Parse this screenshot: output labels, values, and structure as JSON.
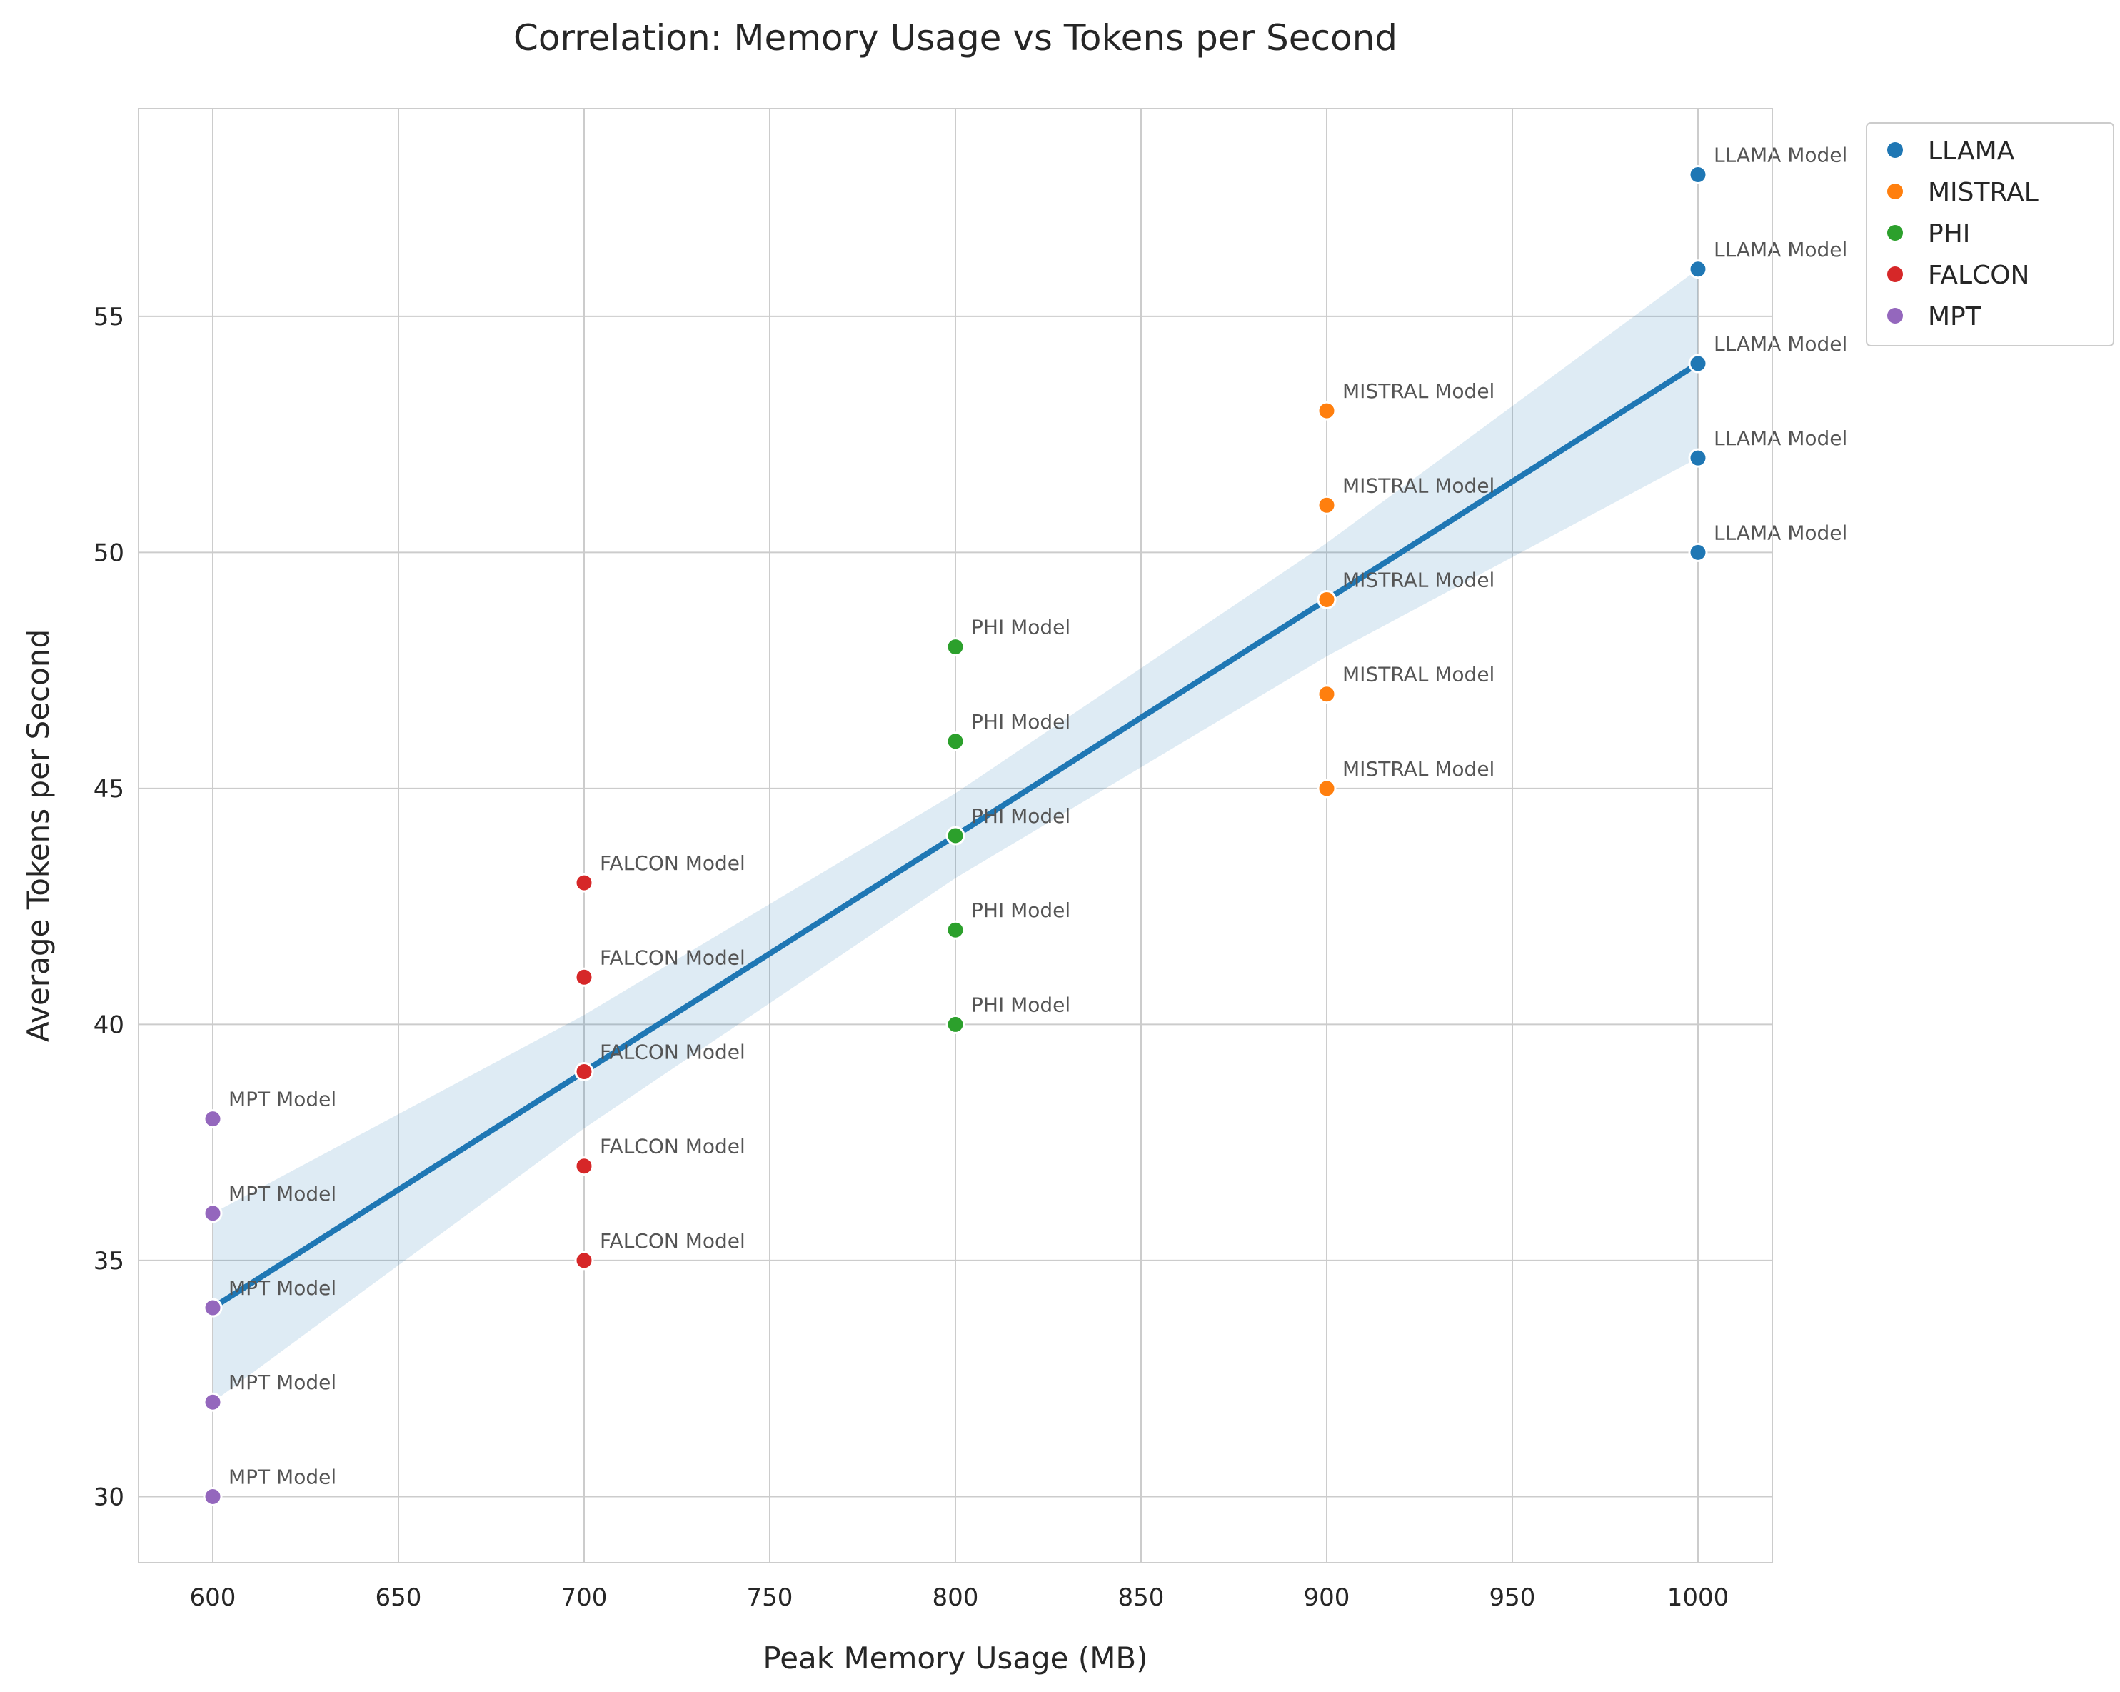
{
  "chart_data": {
    "type": "scatter",
    "title": "Correlation: Memory Usage vs Tokens per Second",
    "xlabel": "Peak Memory Usage (MB)",
    "ylabel": "Average Tokens per Second",
    "xlim": [
      580,
      1020
    ],
    "ylim": [
      28.6,
      59.4
    ],
    "xticks": [
      "600",
      "650",
      "700",
      "750",
      "800",
      "850",
      "900",
      "950",
      "1000"
    ],
    "yticks": [
      "30",
      "35",
      "40",
      "45",
      "50",
      "55"
    ],
    "grid": true,
    "legend_position": "outside-upper-right",
    "series": [
      {
        "name": "LLAMA",
        "color": "#1f77b4",
        "point_label": "LLAMA Model",
        "points": [
          [
            1000,
            58
          ],
          [
            1000,
            56
          ],
          [
            1000,
            54
          ],
          [
            1000,
            52
          ],
          [
            1000,
            50
          ]
        ]
      },
      {
        "name": "MISTRAL",
        "color": "#ff7f0e",
        "point_label": "MISTRAL Model",
        "points": [
          [
            900,
            53
          ],
          [
            900,
            51
          ],
          [
            900,
            49
          ],
          [
            900,
            47
          ],
          [
            900,
            45
          ]
        ]
      },
      {
        "name": "PHI",
        "color": "#2ca02c",
        "point_label": "PHI Model",
        "points": [
          [
            800,
            48
          ],
          [
            800,
            46
          ],
          [
            800,
            44
          ],
          [
            800,
            42
          ],
          [
            800,
            40
          ]
        ]
      },
      {
        "name": "FALCON",
        "color": "#d62728",
        "point_label": "FALCON Model",
        "points": [
          [
            700,
            43
          ],
          [
            700,
            41
          ],
          [
            700,
            39
          ],
          [
            700,
            37
          ],
          [
            700,
            35
          ]
        ]
      },
      {
        "name": "MPT",
        "color": "#9467bd",
        "point_label": "MPT Model",
        "points": [
          [
            600,
            38
          ],
          [
            600,
            36
          ],
          [
            600,
            34
          ],
          [
            600,
            32
          ],
          [
            600,
            30
          ]
        ]
      }
    ],
    "regression": {
      "color": "#1f77b4",
      "x_range": [
        600,
        1000
      ],
      "slope": 0.05,
      "intercept": 4,
      "confidence_band": [
        [
          600,
          32.0,
          36.0
        ],
        [
          700,
          37.8,
          40.2
        ],
        [
          800,
          43.1,
          44.9
        ],
        [
          900,
          47.8,
          50.2
        ],
        [
          1000,
          52.0,
          56.0
        ]
      ]
    }
  }
}
